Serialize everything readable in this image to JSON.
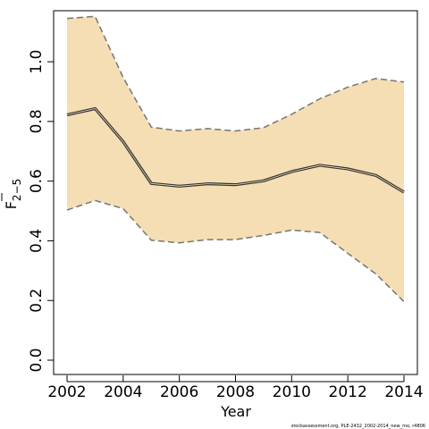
{
  "chart_data": {
    "type": "line",
    "title": "",
    "xlabel": "Year",
    "ylabel_main": "F",
    "ylabel_sub": "2−5",
    "xlim": [
      2002,
      2014
    ],
    "ylim": [
      0,
      1.15
    ],
    "x_ticks": [
      2002,
      2004,
      2006,
      2008,
      2010,
      2012,
      2014
    ],
    "y_ticks": [
      0.0,
      0.2,
      0.4,
      0.6,
      0.8,
      1.0
    ],
    "y_tick_labels": [
      "0.0",
      "0.2",
      "0.4",
      "0.6",
      "0.8",
      "1.0"
    ],
    "x": [
      2002,
      2003,
      2004,
      2005,
      2006,
      2007,
      2008,
      2009,
      2010,
      2011,
      2012,
      2013,
      2014
    ],
    "series": [
      {
        "values": [
          0.822,
          0.843,
          0.732,
          0.592,
          0.583,
          0.591,
          0.588,
          0.601,
          0.632,
          0.653,
          0.641,
          0.619,
          0.563
        ]
      },
      {
        "values": [
          1.145,
          1.152,
          0.947,
          0.781,
          0.768,
          0.776,
          0.768,
          0.779,
          0.824,
          0.876,
          0.915,
          0.944,
          0.932
        ]
      },
      {
        "values": [
          0.503,
          0.535,
          0.508,
          0.402,
          0.393,
          0.404,
          0.404,
          0.418,
          0.436,
          0.428,
          0.358,
          0.289,
          0.196
        ]
      }
    ],
    "colors": {
      "band": "#F5DEB3",
      "main_line": "#333333",
      "bound_line": "#757575"
    },
    "grid": false,
    "footnote": "stockassessment.org, PLE-2432_2002-2014_new_mo, r4806"
  }
}
